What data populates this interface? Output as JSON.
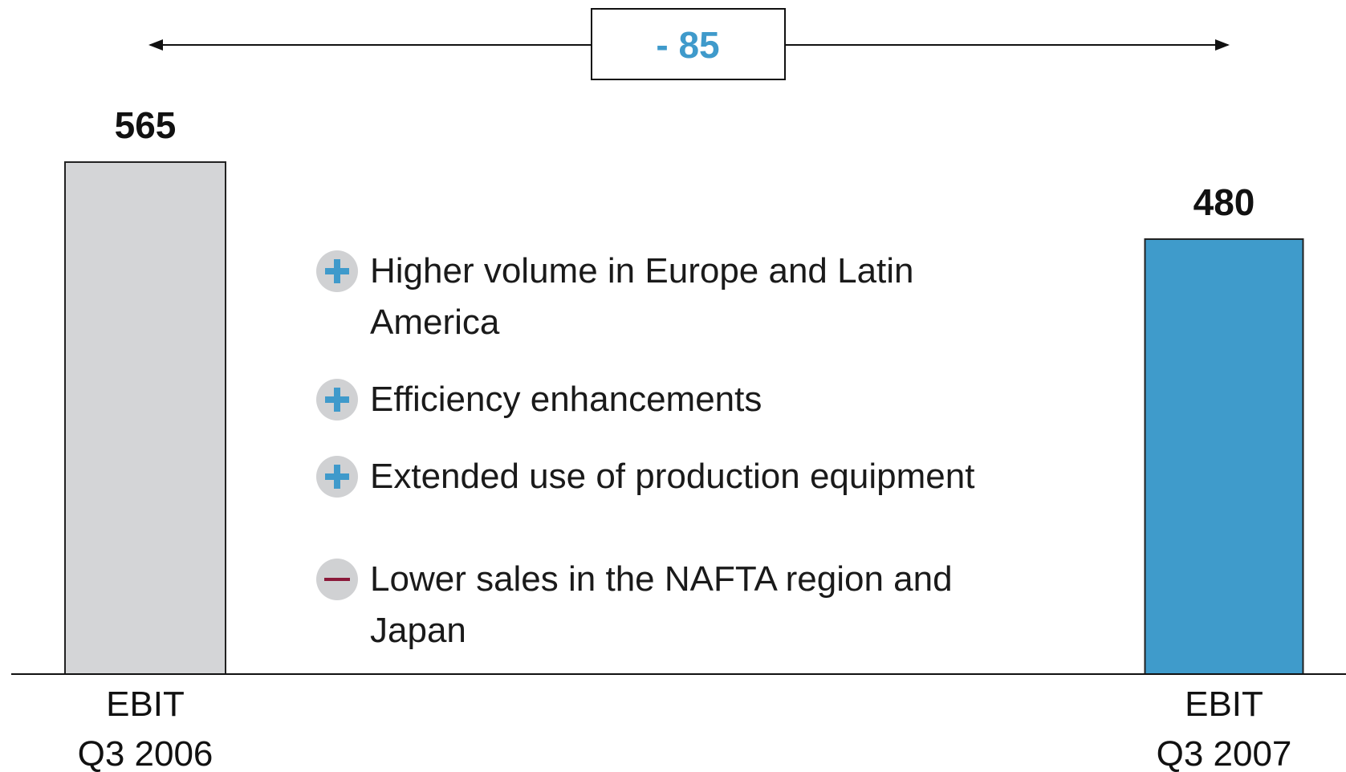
{
  "chart_data": {
    "type": "bar",
    "categories": [
      "EBIT\nQ3 2006",
      "EBIT\nQ3 2007"
    ],
    "values": [
      565,
      480
    ],
    "colors": [
      "#d4d5d7",
      "#3f9bcb"
    ],
    "annotation": "- 85",
    "factors": [
      {
        "effect": "positive",
        "text": "Higher volume in Europe and Latin\nAmerica"
      },
      {
        "effect": "positive",
        "text": "Efficiency enhancements"
      },
      {
        "effect": "positive",
        "text": "Extended use of production equipment"
      },
      {
        "effect": "negative",
        "text": "Lower sales in the NAFTA region and\nJapan"
      }
    ]
  }
}
